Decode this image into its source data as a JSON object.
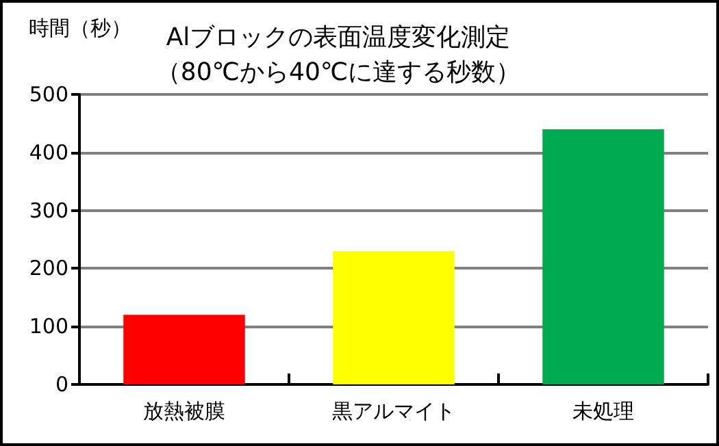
{
  "chart_data": {
    "type": "bar",
    "title": "Alブロックの表面温度変化測定",
    "subtitle": "（80℃から40℃に達する秒数）",
    "ylabel": "時間（秒）",
    "categories": [
      "放熱被膜",
      "黒アルマイト",
      "未処理"
    ],
    "values": [
      120,
      230,
      440
    ],
    "colors": [
      "#ff0000",
      "#ffff00",
      "#00aa4f"
    ],
    "ylim": [
      0,
      500
    ],
    "yticks": [
      0,
      100,
      200,
      300,
      400,
      500
    ],
    "grid": "y"
  }
}
